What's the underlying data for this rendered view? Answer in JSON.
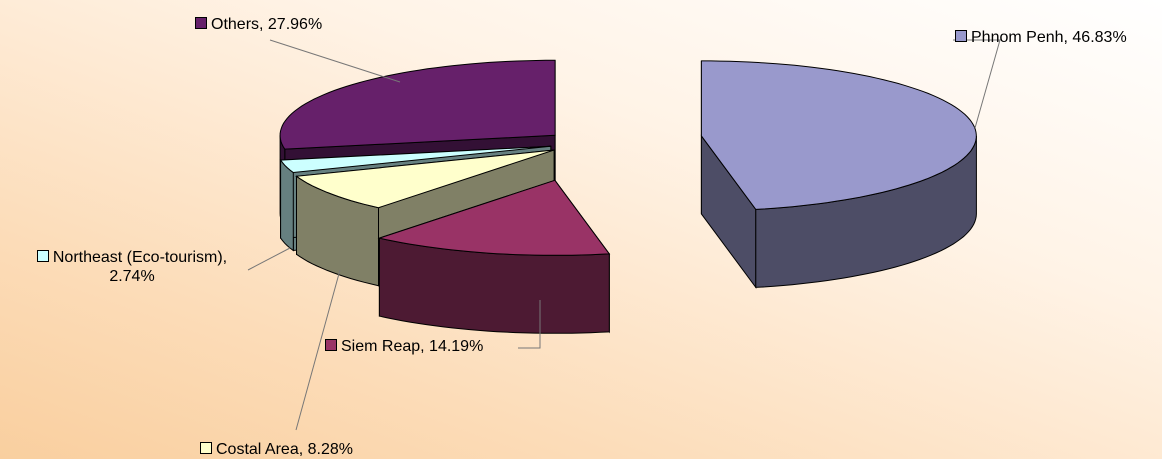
{
  "chart_data": {
    "type": "pie",
    "categories": [
      "Phnom Penh",
      "Siem Reap",
      "Costal Area",
      "Northeast (Eco-tourism)",
      "Others"
    ],
    "values": [
      46.83,
      14.19,
      8.28,
      2.74,
      27.96
    ],
    "value_labels": [
      "Phnom Penh, 46.83%",
      "Siem Reap, 14.19%",
      "Costal Area, 8.28%",
      "Northeast (Eco-tourism), 2.74%",
      "Others, 27.96%"
    ],
    "colors": [
      "#9999cc",
      "#993366",
      "#ffffcc",
      "#ccffff",
      "#66206a"
    ]
  }
}
